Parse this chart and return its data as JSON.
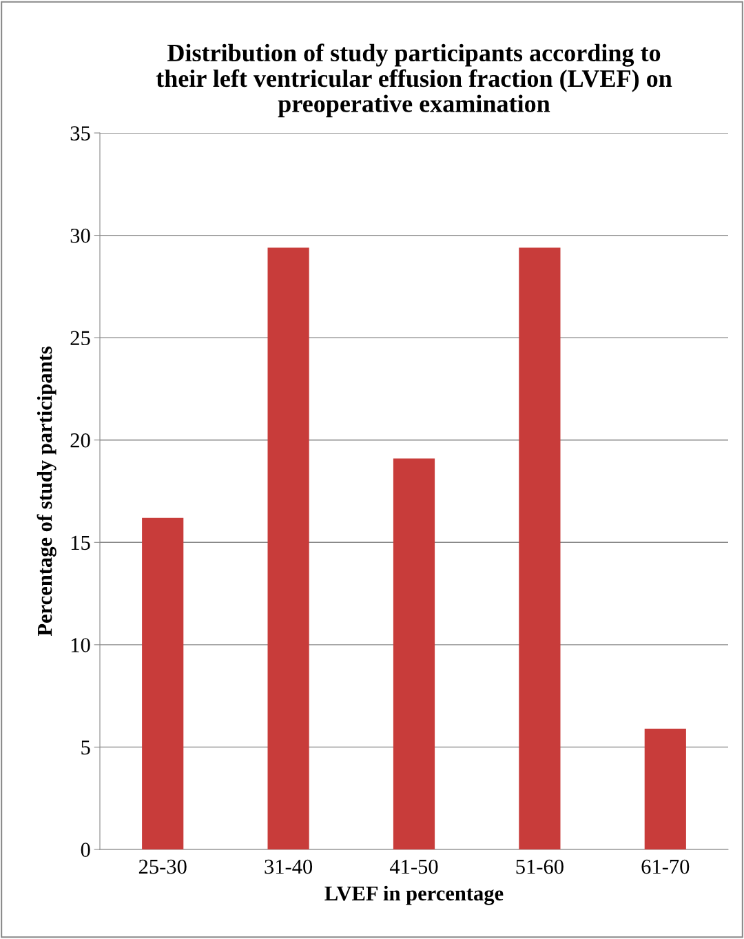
{
  "chart_data": {
    "type": "bar",
    "title": "Distribution of study participants according to\ntheir left ventricular effusion fraction (LVEF) on\npreoperative examination",
    "xlabel": "LVEF in percentage",
    "ylabel": "Percentage of study participants",
    "categories": [
      "25-30",
      "31-40",
      "41-50",
      "51-60",
      "61-70"
    ],
    "values": [
      16.2,
      29.4,
      19.1,
      29.4,
      5.9
    ],
    "color": "#c83c3a",
    "ylim": [
      0,
      35
    ],
    "yticks": [
      0,
      5,
      10,
      15,
      20,
      25,
      30,
      35
    ],
    "grid": "y",
    "legend": false
  }
}
